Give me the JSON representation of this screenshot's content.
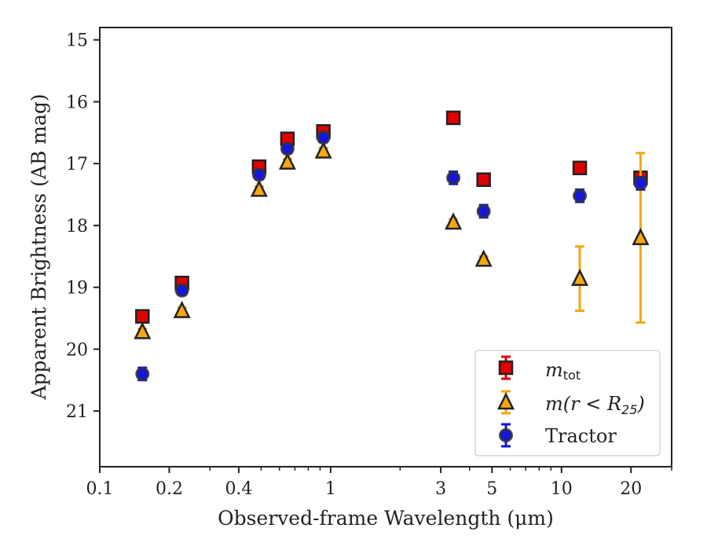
{
  "chart_data": {
    "type": "scatter",
    "xlabel": "Observed-frame Wavelength (μm)",
    "ylabel": "Apparent Brightness (AB mag)",
    "x_scale": "log",
    "y_inverted": true,
    "xlim": [
      0.1,
      30
    ],
    "ylim": [
      21.9,
      14.8
    ],
    "xticks": [
      {
        "value": 0.1,
        "label": "0.1"
      },
      {
        "value": 0.2,
        "label": "0.2"
      },
      {
        "value": 0.4,
        "label": "0.4"
      },
      {
        "value": 1,
        "label": "1"
      },
      {
        "value": 3,
        "label": "3"
      },
      {
        "value": 5,
        "label": "5"
      },
      {
        "value": 10,
        "label": "10"
      },
      {
        "value": 20,
        "label": "20"
      }
    ],
    "yticks": [
      {
        "value": 15,
        "label": "15"
      },
      {
        "value": 16,
        "label": "16"
      },
      {
        "value": 17,
        "label": "17"
      },
      {
        "value": 18,
        "label": "18"
      },
      {
        "value": 19,
        "label": "19"
      },
      {
        "value": 20,
        "label": "20"
      },
      {
        "value": 21,
        "label": "21"
      }
    ],
    "grid": false,
    "legend_position": "bottom-right",
    "series": [
      {
        "key": "mtot",
        "legend_main": "m",
        "legend_sub": "tot",
        "marker": "square",
        "color": "#e00000",
        "errcolor": "#e00000",
        "points": [
          {
            "x": 0.153,
            "y": 19.47,
            "err": 0.05
          },
          {
            "x": 0.227,
            "y": 18.93,
            "err": 0.05
          },
          {
            "x": 0.49,
            "y": 17.05,
            "err": 0.05
          },
          {
            "x": 0.65,
            "y": 16.6,
            "err": 0.05
          },
          {
            "x": 0.93,
            "y": 16.48,
            "err": 0.05
          },
          {
            "x": 3.4,
            "y": 16.26,
            "err": 0.05
          },
          {
            "x": 4.6,
            "y": 17.26,
            "err": 0.05
          },
          {
            "x": 12.0,
            "y": 17.07,
            "err": 0.05
          },
          {
            "x": 22.0,
            "y": 17.23,
            "err": 0.05
          }
        ]
      },
      {
        "key": "mr25",
        "legend_main": "m(r < R",
        "legend_sub": "25",
        "legend_end": ")",
        "marker": "triangle",
        "color": "#f5a70f",
        "errcolor": "#f5a70f",
        "points": [
          {
            "x": 0.153,
            "y": 19.72,
            "err": 0.05
          },
          {
            "x": 0.227,
            "y": 19.38,
            "err": 0.05
          },
          {
            "x": 0.49,
            "y": 17.42,
            "err": 0.05
          },
          {
            "x": 0.65,
            "y": 16.98,
            "err": 0.05
          },
          {
            "x": 0.93,
            "y": 16.8,
            "err": 0.05
          },
          {
            "x": 3.4,
            "y": 17.95,
            "err": 0.05
          },
          {
            "x": 4.6,
            "y": 18.55,
            "err": 0.05
          },
          {
            "x": 12.0,
            "y": 18.86,
            "err": 0.52
          },
          {
            "x": 22.0,
            "y": 18.2,
            "err": 1.37
          }
        ]
      },
      {
        "key": "tractor",
        "legend_main": "Tractor",
        "marker": "circle",
        "color": "#1515e0",
        "errcolor": "#1515e0",
        "points": [
          {
            "x": 0.153,
            "y": 20.4,
            "err": 0.1
          },
          {
            "x": 0.227,
            "y": 19.05,
            "err": 0.07
          },
          {
            "x": 0.49,
            "y": 17.18,
            "err": 0.07
          },
          {
            "x": 0.65,
            "y": 16.76,
            "err": 0.07
          },
          {
            "x": 0.93,
            "y": 16.58,
            "err": 0.07
          },
          {
            "x": 3.4,
            "y": 17.23,
            "err": 0.1
          },
          {
            "x": 4.6,
            "y": 17.77,
            "err": 0.1
          },
          {
            "x": 12.0,
            "y": 17.52,
            "err": 0.1
          },
          {
            "x": 22.0,
            "y": 17.32,
            "err": 0.1
          }
        ]
      }
    ]
  }
}
